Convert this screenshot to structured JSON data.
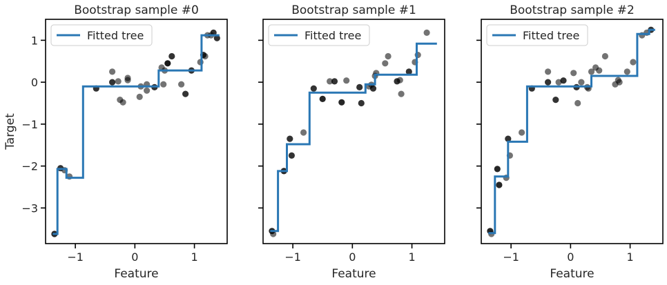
{
  "figure": {
    "ylabel": "Target"
  },
  "chart_data": [
    {
      "type": "scatter",
      "title": "Bootstrap sample #0",
      "xlabel": "Feature",
      "ylabel": "Target",
      "xlim": [
        -1.5,
        1.55
      ],
      "ylim": [
        -3.85,
        1.5
      ],
      "xticks": [
        -1,
        0,
        1
      ],
      "yticks": [
        -3,
        -2,
        -1,
        0,
        1
      ],
      "legend": {
        "label": "Fitted tree",
        "position": "top-left"
      },
      "points": [
        {
          "x": -1.35,
          "y": -3.62,
          "o": 0.85
        },
        {
          "x": -1.25,
          "y": -2.05,
          "o": 0.8
        },
        {
          "x": -1.18,
          "y": -2.1,
          "o": 0.55
        },
        {
          "x": -1.1,
          "y": -2.25,
          "o": 0.55
        },
        {
          "x": -0.65,
          "y": -0.15,
          "o": 0.8
        },
        {
          "x": -0.38,
          "y": 0.25,
          "o": 0.55
        },
        {
          "x": -0.38,
          "y": 0.0,
          "o": 0.8
        },
        {
          "x": -0.28,
          "y": 0.02,
          "o": 0.55
        },
        {
          "x": -0.25,
          "y": -0.42,
          "o": 0.55
        },
        {
          "x": -0.2,
          "y": -0.48,
          "o": 0.55
        },
        {
          "x": -0.12,
          "y": 0.1,
          "o": 0.55
        },
        {
          "x": -0.12,
          "y": 0.05,
          "o": 0.55
        },
        {
          "x": 0.08,
          "y": -0.35,
          "o": 0.55
        },
        {
          "x": 0.1,
          "y": -0.1,
          "o": 0.55
        },
        {
          "x": 0.2,
          "y": -0.2,
          "o": 0.55
        },
        {
          "x": 0.2,
          "y": -0.05,
          "o": 0.55
        },
        {
          "x": 0.33,
          "y": -0.12,
          "o": 0.8
        },
        {
          "x": 0.45,
          "y": 0.35,
          "o": 0.55
        },
        {
          "x": 0.48,
          "y": -0.05,
          "o": 0.55
        },
        {
          "x": 0.5,
          "y": 0.28,
          "o": 0.55
        },
        {
          "x": 0.55,
          "y": 0.45,
          "o": 0.9
        },
        {
          "x": 0.62,
          "y": 0.62,
          "o": 0.8
        },
        {
          "x": 0.78,
          "y": -0.05,
          "o": 0.55
        },
        {
          "x": 0.85,
          "y": -0.28,
          "o": 0.8
        },
        {
          "x": 0.95,
          "y": 0.28,
          "o": 0.8
        },
        {
          "x": 1.1,
          "y": 0.48,
          "o": 0.55
        },
        {
          "x": 1.15,
          "y": 0.65,
          "o": 0.8
        },
        {
          "x": 1.18,
          "y": 0.62,
          "o": 0.55
        },
        {
          "x": 1.22,
          "y": 1.12,
          "o": 0.55
        },
        {
          "x": 1.28,
          "y": 1.12,
          "o": 0.55
        },
        {
          "x": 1.32,
          "y": 1.18,
          "o": 0.8
        },
        {
          "x": 1.38,
          "y": 1.05,
          "o": 0.8
        }
      ],
      "series": [
        {
          "name": "Fitted tree",
          "step_x": [
            -1.38,
            -1.3,
            -1.3,
            -1.15,
            -1.15,
            -0.87,
            -0.87,
            0.4,
            0.4,
            1.12,
            1.12,
            1.42
          ],
          "step_y": [
            -3.62,
            -3.62,
            -2.07,
            -2.07,
            -2.28,
            -2.28,
            -0.1,
            -0.1,
            0.28,
            0.28,
            1.12,
            1.12
          ]
        }
      ]
    },
    {
      "type": "scatter",
      "title": "Bootstrap sample #1",
      "xlabel": "Feature",
      "ylabel": "",
      "xlim": [
        -1.5,
        1.55
      ],
      "ylim": [
        -3.85,
        1.5
      ],
      "xticks": [
        -1,
        0,
        1
      ],
      "yticks": [
        -3,
        -2,
        -1,
        0,
        1
      ],
      "legend": {
        "label": "Fitted tree",
        "position": "top-left"
      },
      "points": [
        {
          "x": -1.35,
          "y": -3.55,
          "o": 0.85
        },
        {
          "x": -1.33,
          "y": -3.62,
          "o": 0.55
        },
        {
          "x": -1.15,
          "y": -2.12,
          "o": 0.85
        },
        {
          "x": -1.05,
          "y": -1.35,
          "o": 0.8
        },
        {
          "x": -1.02,
          "y": -1.75,
          "o": 0.8
        },
        {
          "x": -0.82,
          "y": -1.2,
          "o": 0.55
        },
        {
          "x": -0.65,
          "y": -0.15,
          "o": 0.8
        },
        {
          "x": -0.5,
          "y": -0.4,
          "o": 0.85
        },
        {
          "x": -0.38,
          "y": 0.02,
          "o": 0.55
        },
        {
          "x": -0.3,
          "y": 0.02,
          "o": 0.8
        },
        {
          "x": -0.18,
          "y": -0.48,
          "o": 0.85
        },
        {
          "x": -0.1,
          "y": 0.04,
          "o": 0.55
        },
        {
          "x": 0.12,
          "y": -0.12,
          "o": 0.8
        },
        {
          "x": 0.15,
          "y": -0.5,
          "o": 0.8
        },
        {
          "x": 0.28,
          "y": -0.1,
          "o": 0.55
        },
        {
          "x": 0.32,
          "y": -0.06,
          "o": 0.55
        },
        {
          "x": 0.35,
          "y": -0.15,
          "o": 0.8
        },
        {
          "x": 0.38,
          "y": 0.15,
          "o": 0.55
        },
        {
          "x": 0.4,
          "y": 0.22,
          "o": 0.55
        },
        {
          "x": 0.55,
          "y": 0.45,
          "o": 0.55
        },
        {
          "x": 0.6,
          "y": 0.62,
          "o": 0.55
        },
        {
          "x": 0.75,
          "y": 0.02,
          "o": 0.8
        },
        {
          "x": 0.8,
          "y": 0.05,
          "o": 0.55
        },
        {
          "x": 0.82,
          "y": -0.28,
          "o": 0.55
        },
        {
          "x": 0.95,
          "y": 0.25,
          "o": 0.8
        },
        {
          "x": 1.05,
          "y": 0.48,
          "o": 0.55
        },
        {
          "x": 1.1,
          "y": 0.65,
          "o": 0.55
        },
        {
          "x": 1.25,
          "y": 1.18,
          "o": 0.55
        }
      ],
      "series": [
        {
          "name": "Fitted tree",
          "step_x": [
            -1.38,
            -1.25,
            -1.25,
            -1.1,
            -1.1,
            -0.72,
            -0.72,
            0.22,
            0.22,
            0.38,
            0.38,
            1.08,
            1.08,
            1.42
          ],
          "step_y": [
            -3.55,
            -3.55,
            -2.12,
            -2.12,
            -1.48,
            -1.48,
            -0.25,
            -0.25,
            -0.05,
            -0.05,
            0.18,
            0.18,
            0.92,
            0.92
          ]
        }
      ]
    },
    {
      "type": "scatter",
      "title": "Bootstrap sample #2",
      "xlabel": "Feature",
      "ylabel": "",
      "xlim": [
        -1.5,
        1.55
      ],
      "ylim": [
        -3.85,
        1.5
      ],
      "xticks": [
        -1,
        0,
        1
      ],
      "yticks": [
        -3,
        -2,
        -1,
        0,
        1
      ],
      "legend": {
        "label": "Fitted tree",
        "position": "top-left"
      },
      "points": [
        {
          "x": -1.35,
          "y": -3.55,
          "o": 0.85
        },
        {
          "x": -1.33,
          "y": -3.62,
          "o": 0.55
        },
        {
          "x": -1.23,
          "y": -2.07,
          "o": 0.85
        },
        {
          "x": -1.2,
          "y": -2.45,
          "o": 0.85
        },
        {
          "x": -1.08,
          "y": -2.28,
          "o": 0.55
        },
        {
          "x": -1.05,
          "y": -1.35,
          "o": 0.8
        },
        {
          "x": -1.02,
          "y": -1.75,
          "o": 0.55
        },
        {
          "x": -0.82,
          "y": -1.2,
          "o": 0.55
        },
        {
          "x": -0.65,
          "y": -0.15,
          "o": 0.8
        },
        {
          "x": -0.38,
          "y": 0.25,
          "o": 0.55
        },
        {
          "x": -0.38,
          "y": 0.0,
          "o": 0.8
        },
        {
          "x": -0.25,
          "y": -0.42,
          "o": 0.8
        },
        {
          "x": -0.2,
          "y": 0.0,
          "o": 0.55
        },
        {
          "x": -0.12,
          "y": 0.04,
          "o": 0.8
        },
        {
          "x": 0.05,
          "y": 0.22,
          "o": 0.55
        },
        {
          "x": 0.1,
          "y": -0.12,
          "o": 0.8
        },
        {
          "x": 0.12,
          "y": -0.5,
          "o": 0.55
        },
        {
          "x": 0.18,
          "y": 0.0,
          "o": 0.55
        },
        {
          "x": 0.28,
          "y": -0.12,
          "o": 0.55
        },
        {
          "x": 0.3,
          "y": -0.15,
          "o": 0.55
        },
        {
          "x": 0.35,
          "y": 0.25,
          "o": 0.55
        },
        {
          "x": 0.42,
          "y": 0.35,
          "o": 0.55
        },
        {
          "x": 0.48,
          "y": 0.28,
          "o": 0.55
        },
        {
          "x": 0.58,
          "y": 0.62,
          "o": 0.55
        },
        {
          "x": 0.75,
          "y": -0.05,
          "o": 0.55
        },
        {
          "x": 0.8,
          "y": 0.05,
          "o": 0.55
        },
        {
          "x": 0.82,
          "y": 0.0,
          "o": 0.55
        },
        {
          "x": 0.95,
          "y": 0.25,
          "o": 0.55
        },
        {
          "x": 1.05,
          "y": 0.48,
          "o": 0.55
        },
        {
          "x": 1.2,
          "y": 1.12,
          "o": 0.55
        },
        {
          "x": 1.28,
          "y": 1.18,
          "o": 0.55
        },
        {
          "x": 1.35,
          "y": 1.25,
          "o": 0.8
        }
      ],
      "series": [
        {
          "name": "Fitted tree",
          "step_x": [
            -1.38,
            -1.27,
            -1.27,
            -1.05,
            -1.05,
            -0.73,
            -0.73,
            0.35,
            0.35,
            1.12,
            1.12,
            1.32,
            1.32,
            1.42
          ],
          "step_y": [
            -3.6,
            -3.6,
            -2.25,
            -2.25,
            -1.42,
            -1.42,
            -0.1,
            -0.1,
            0.15,
            0.15,
            1.15,
            1.15,
            1.25,
            1.25
          ]
        }
      ]
    }
  ],
  "colors": {
    "line": "#2a77b4",
    "point": "#000000",
    "frame": "#000000",
    "text": "#262626",
    "legend_border": "#cccccc"
  }
}
